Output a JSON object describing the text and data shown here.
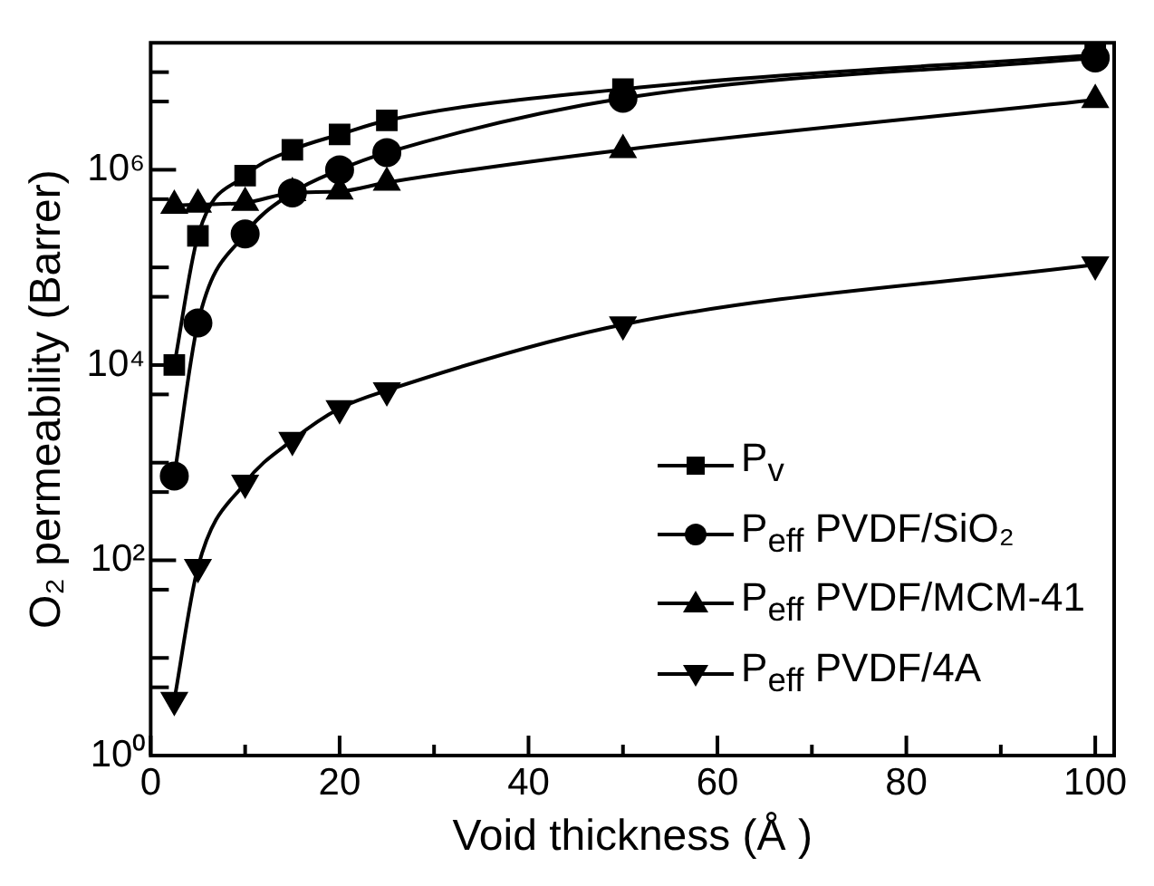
{
  "chart_data": {
    "type": "line",
    "xlabel": "Void thickness (Å )",
    "ylabel": "O₂ permeability (Barrer)",
    "log": "y",
    "xlim": [
      0,
      102
    ],
    "xticks": [
      0,
      {
        "value": 10,
        "label": null
      },
      20,
      {
        "value": 30,
        "label": null
      },
      40,
      {
        "value": 50,
        "label": null
      },
      60,
      {
        "value": 70,
        "label": null
      },
      80,
      {
        "value": 90,
        "label": null
      },
      100
    ],
    "ylim": [
      1,
      20000000
    ],
    "yticks": [
      {
        "value": 1,
        "label": "10⁰"
      },
      {
        "value": 5,
        "label": null
      },
      {
        "value": 10,
        "label": null
      },
      {
        "value": 50,
        "label": null
      },
      {
        "value": 100,
        "label": "10²"
      },
      {
        "value": 500,
        "label": null
      },
      {
        "value": 1000,
        "label": null
      },
      {
        "value": 5000,
        "label": null
      },
      {
        "value": 10000,
        "label": "10⁴"
      },
      {
        "value": 50000,
        "label": null
      },
      {
        "value": 100000,
        "label": null
      },
      {
        "value": 500000,
        "label": null
      },
      {
        "value": 1000000,
        "label": "10⁶"
      },
      {
        "value": 5000000,
        "label": null
      },
      {
        "value": 10000000,
        "label": null
      }
    ],
    "x": [
      2.5,
      5,
      10,
      15,
      20,
      25,
      50,
      100
    ],
    "grid": false,
    "legend": "bottom right",
    "line_style": "solid",
    "series": [
      {
        "name": "P$_{v}$",
        "color": "#000000",
        "marker": "square",
        "values": [
          10000,
          210000,
          870000,
          1600000,
          2300000,
          3200000,
          6700000,
          15000000
        ]
      },
      {
        "name": "P$_{eff}$ PVDF/SiO₂",
        "color": "#000000",
        "marker": "circle",
        "values": [
          730,
          27000,
          220000,
          580000,
          1000000,
          1500000,
          5400000,
          14000000
        ]
      },
      {
        "name": "P$_{eff}$ PVDF/MCM-41",
        "color": "#000000",
        "marker": "triangle",
        "values": [
          430000,
          440000,
          460000,
          580000,
          600000,
          740000,
          1600000,
          5200000
        ]
      },
      {
        "name": "P$_{eff}$ PVDF/4A",
        "color": "#000000",
        "marker": "triangle-down",
        "values": [
          3.7,
          85,
          620,
          1700,
          3600,
          5500,
          26000,
          107000
        ]
      }
    ]
  }
}
